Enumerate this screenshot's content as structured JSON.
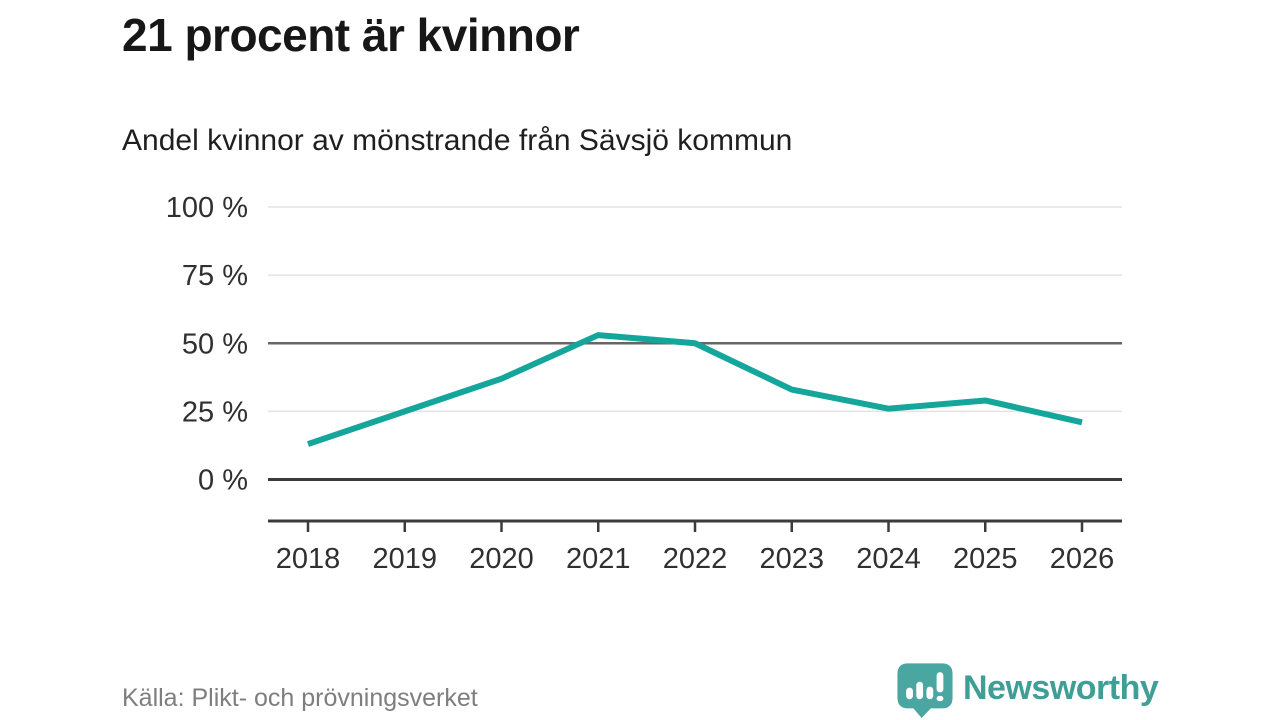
{
  "header": {
    "title": "21 procent är kvinnor",
    "subtitle": "Andel kvinnor av mönstrande från Sävsjö kommun"
  },
  "chart_data": {
    "type": "line",
    "title": "21 procent är kvinnor",
    "subtitle": "Andel kvinnor av mönstrande från Sävsjö kommun",
    "x": [
      2018,
      2019,
      2020,
      2021,
      2022,
      2023,
      2024,
      2025,
      2026
    ],
    "x_labels": [
      "2018",
      "2019",
      "2020",
      "2021",
      "2022",
      "2023",
      "2024",
      "2025",
      "2026"
    ],
    "series": [
      {
        "name": "Andel kvinnor av mönstrande",
        "values": [
          13,
          25,
          37,
          53,
          50,
          33,
          26,
          29,
          21
        ],
        "color": "#14a69b"
      }
    ],
    "unit": "%",
    "ylim": [
      0,
      100
    ],
    "yticks": [
      {
        "value": 0,
        "label": "0 %",
        "style": "zero"
      },
      {
        "value": 25,
        "label": "25 %",
        "style": "light"
      },
      {
        "value": 50,
        "label": "50 %",
        "style": "emphasis"
      },
      {
        "value": 75,
        "label": "75 %",
        "style": "light"
      },
      {
        "value": 100,
        "label": "100 %",
        "style": "light"
      }
    ],
    "grid": "horizontal-only",
    "legend": "none"
  },
  "footer": {
    "source": "Källa: Plikt- och prövningsverket",
    "brand": "Newsworthy"
  },
  "icons": {
    "logo": "newsworthy-speech-bubble-barchart-icon"
  },
  "colors": {
    "background": "#ffffff",
    "line": "#14a69b",
    "grid_light": "#e3e3e3",
    "grid_emphasis": "#666666",
    "axis": "#3b3b3b",
    "text_dark": "#171717",
    "text_tick": "#303030",
    "text_muted": "#7e7e7e",
    "logo_bubble": "#4aa6a0",
    "logo_text": "#3f9e96"
  }
}
